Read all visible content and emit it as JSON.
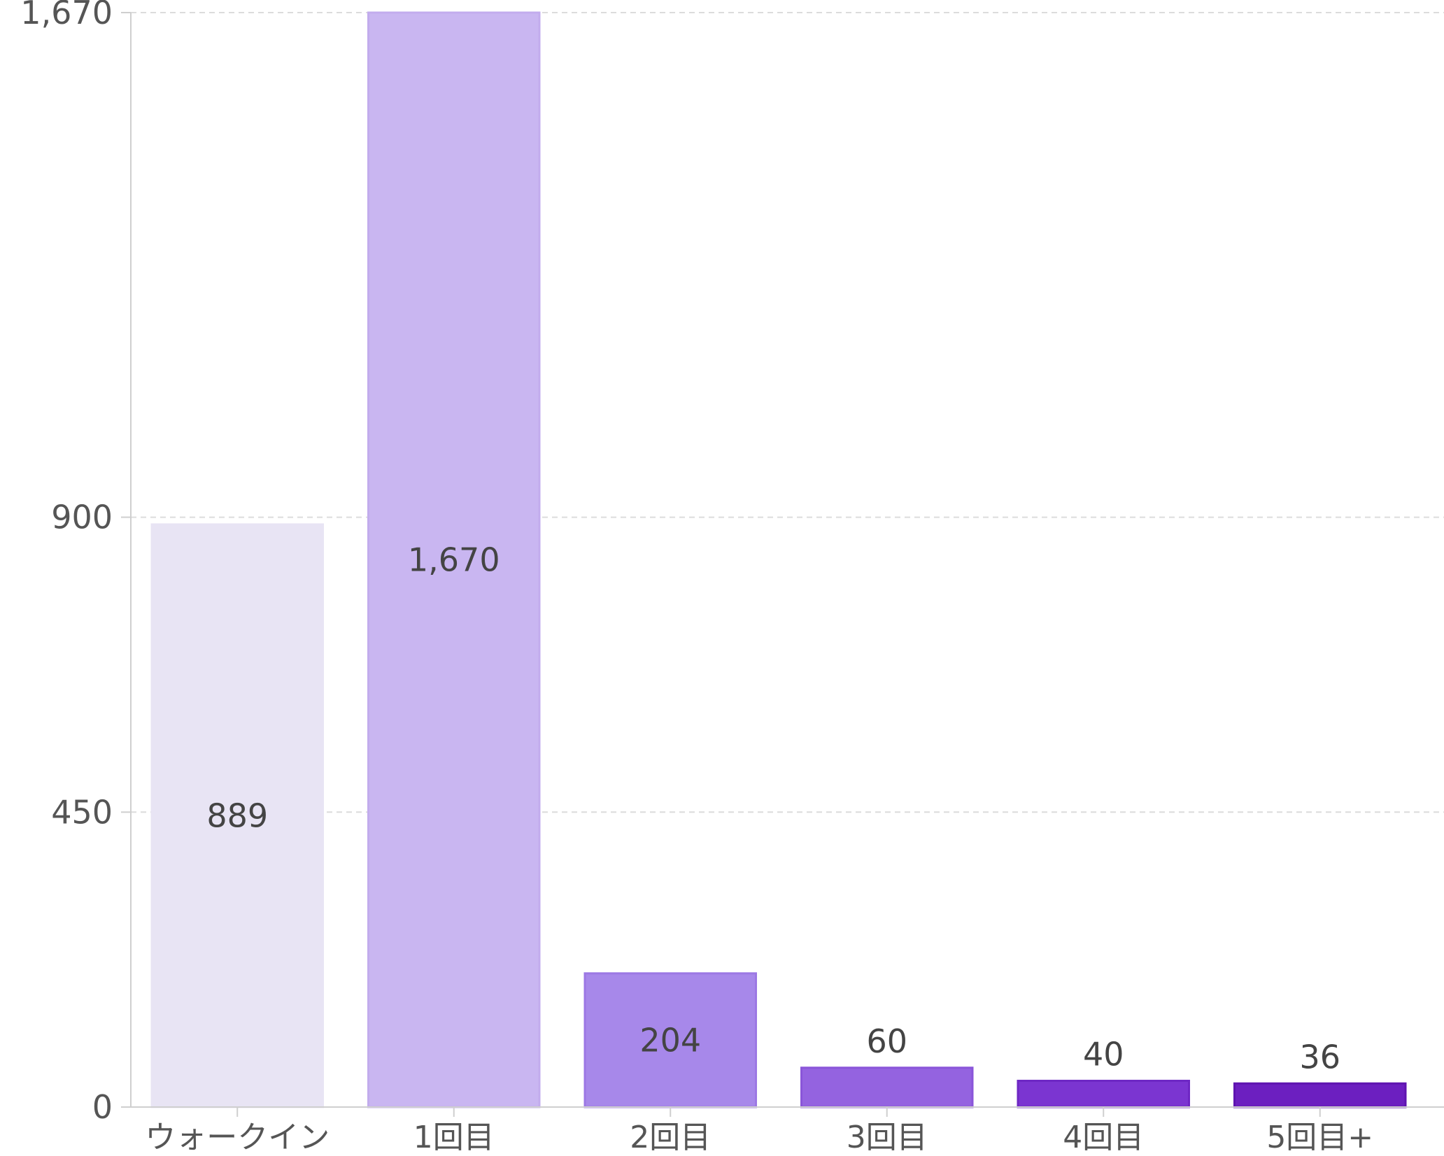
{
  "chart_data": {
    "type": "bar",
    "title": "",
    "xlabel": "",
    "ylabel": "",
    "categories": [
      "ウォークイン",
      "1回目",
      "2回目",
      "3回目",
      "4回目",
      "5回目+"
    ],
    "values": [
      889,
      1670,
      204,
      60,
      40,
      36
    ],
    "data_labels": [
      "889",
      "1,670",
      "204",
      "60",
      "40",
      "36"
    ],
    "ylim": [
      0,
      1670
    ],
    "y_ticks": [
      0,
      450,
      900,
      1670
    ],
    "y_tick_labels": [
      "0",
      "450",
      "900",
      "1,670"
    ],
    "grid": true,
    "legend": "none",
    "bar_colors": [
      "#e8e4f4",
      "#c9b6f1",
      "#a788ea",
      "#9463e0",
      "#7b35d1",
      "#6c1fc0"
    ],
    "bar_border_colors": [
      "#e8e4f4",
      "#c2aced",
      "#9c78e4",
      "#8a55d9",
      "#6e27c4",
      "#5f14b0"
    ]
  }
}
